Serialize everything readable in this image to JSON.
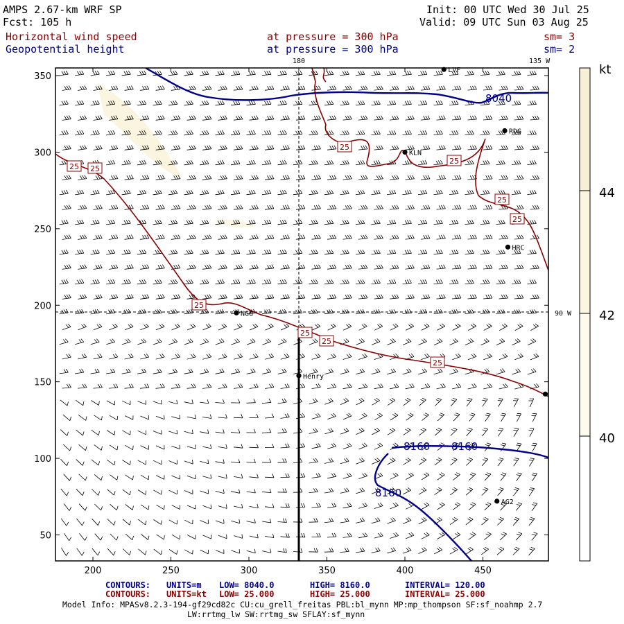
{
  "header": {
    "model": "AMPS 2.67-km WRF SP",
    "fcst": "Fcst: 105 h",
    "init": "Init: 00 UTC Wed 30 Jul 25",
    "valid": "Valid: 09 UTC Sun 03 Aug 25",
    "field1_name": "Horizontal wind speed",
    "field1_level": "at pressure = 300 hPa",
    "field1_sm": "sm= 3",
    "field2_name": "Geopotential height",
    "field2_level": "at pressure = 300 hPa",
    "field2_sm": "sm= 2"
  },
  "map": {
    "x_ticks": [
      200,
      250,
      300,
      350,
      400,
      450
    ],
    "y_ticks": [
      50,
      100,
      150,
      200,
      250,
      300,
      350
    ],
    "x_range": [
      176,
      492
    ],
    "y_range": [
      33,
      355
    ],
    "meridian_180_label": "180",
    "meridian_135w_label": "135 W",
    "meridian_90w_label": "90 W",
    "stations": [
      {
        "label": "LVF",
        "x": 425,
        "y": 354
      },
      {
        "label": "RDG",
        "x": 464,
        "y": 314
      },
      {
        "label": "KLN",
        "x": 400,
        "y": 300
      },
      {
        "label": "HRC",
        "x": 466,
        "y": 238
      },
      {
        "label": "NGG",
        "x": 292,
        "y": 195
      },
      {
        "label": "Henry",
        "x": 332,
        "y": 154
      },
      {
        "label": "AG2",
        "x": 459,
        "y": 72
      },
      {
        "label": "",
        "x": 490,
        "y": 142
      }
    ],
    "wind_contour_label": "25",
    "height_labels": [
      "8040",
      "8160",
      "8160",
      "8160"
    ],
    "cross_section_x": 333
  },
  "colorbar": {
    "unit": "kt",
    "ticks": [
      "44",
      "42",
      "40"
    ],
    "colors": [
      "#f8efd6",
      "#fbf6df",
      "#fdfbec",
      "#ffffff"
    ]
  },
  "footer": {
    "row1": {
      "label": "CONTOURS:",
      "units": "UNITS=m",
      "low": "LOW= 8040.0",
      "high": "HIGH= 8160.0",
      "interval": "INTERVAL= 120.00"
    },
    "row2": {
      "label": "CONTOURS:",
      "units": "UNITS=kt",
      "low": "LOW= 25.000",
      "high": "HIGH= 25.000",
      "interval": "INTERVAL= 25.000"
    },
    "model_info": "Model Info: MPASv8.2.3-194-gf29cd82c CU:cu_grell_freitas PBL:bl_mynn MP:mp_thompson SF:sf_noahmp 2.7",
    "model_info2": "LW:rrtmg_lw SW:rrtmg_sw SFLAY:sf_mynn"
  }
}
